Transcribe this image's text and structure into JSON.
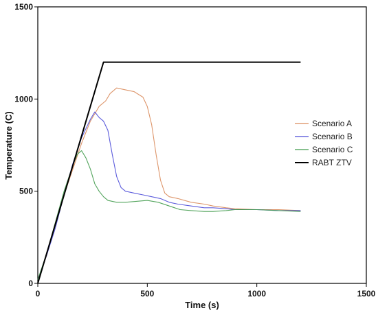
{
  "chart_data": {
    "type": "line",
    "title": "",
    "xlabel": "Time  (s)",
    "ylabel": "Temperature (C)",
    "xlim": [
      0,
      1500
    ],
    "ylim": [
      0,
      1500
    ],
    "xticks": [
      0,
      500,
      1000,
      1500
    ],
    "yticks": [
      0,
      500,
      1000,
      1500
    ],
    "grid": false,
    "legend_position": "right",
    "series": [
      {
        "name": "Scenario A",
        "color": "#d98a5a",
        "x": [
          0,
          40,
          80,
          120,
          160,
          200,
          240,
          280,
          310,
          330,
          360,
          400,
          440,
          480,
          500,
          520,
          540,
          560,
          580,
          600,
          640,
          700,
          760,
          800,
          860,
          900,
          1000,
          1100,
          1200
        ],
        "y": [
          20,
          150,
          320,
          480,
          620,
          760,
          880,
          960,
          990,
          1030,
          1060,
          1050,
          1040,
          1010,
          960,
          860,
          700,
          560,
          490,
          470,
          460,
          440,
          430,
          420,
          410,
          405,
          400,
          400,
          395
        ]
      },
      {
        "name": "Scenario B",
        "color": "#4a4ad8",
        "x": [
          0,
          40,
          80,
          120,
          160,
          200,
          220,
          240,
          260,
          280,
          300,
          320,
          340,
          360,
          380,
          400,
          440,
          480,
          520,
          560,
          600,
          640,
          700,
          760,
          800,
          860,
          900,
          1000,
          1100,
          1200
        ],
        "y": [
          20,
          150,
          300,
          480,
          650,
          790,
          840,
          890,
          930,
          900,
          880,
          830,
          700,
          580,
          520,
          500,
          490,
          480,
          470,
          460,
          440,
          430,
          420,
          410,
          410,
          405,
          400,
          400,
          395,
          395
        ]
      },
      {
        "name": "Scenario C",
        "color": "#3f9a4a",
        "x": [
          0,
          40,
          80,
          120,
          160,
          180,
          200,
          220,
          240,
          260,
          280,
          300,
          320,
          360,
          400,
          450,
          500,
          550,
          600,
          650,
          700,
          760,
          800,
          860,
          900,
          1000,
          1100,
          1200
        ],
        "y": [
          20,
          160,
          330,
          500,
          640,
          700,
          720,
          680,
          620,
          540,
          500,
          470,
          450,
          440,
          440,
          445,
          450,
          440,
          420,
          400,
          395,
          390,
          390,
          395,
          400,
          400,
          395,
          390
        ]
      },
      {
        "name": "RABT ZTV",
        "color": "#000000",
        "x": [
          0,
          300,
          1200
        ],
        "y": [
          0,
          1200,
          1200
        ]
      }
    ]
  }
}
